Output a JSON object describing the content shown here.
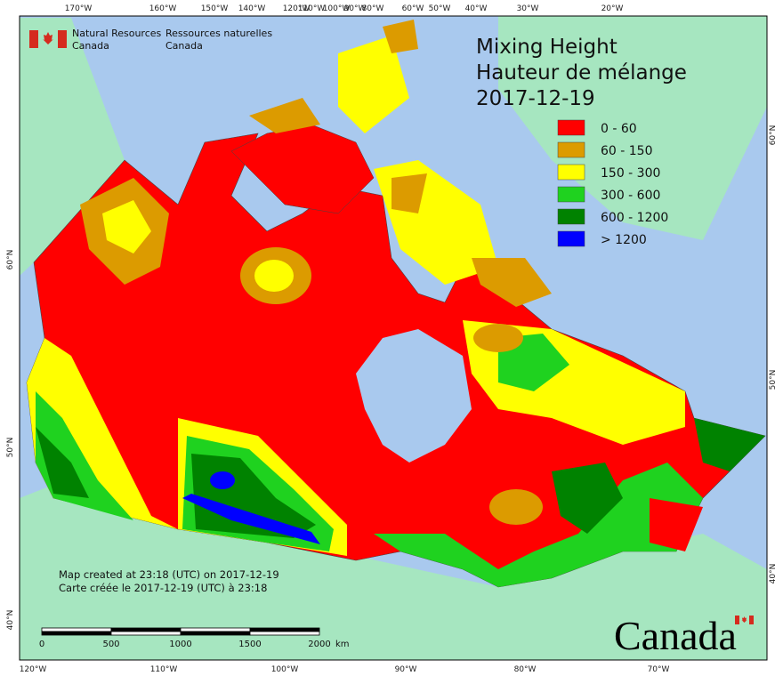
{
  "header": {
    "agency_en": [
      "Natural Resources",
      "Canada"
    ],
    "agency_fr": [
      "Ressources naturelles",
      "Canada"
    ]
  },
  "title": [
    "Mixing Height",
    "Hauteur de mélange",
    "2017-12-19"
  ],
  "legend": [
    {
      "label": "0 - 60",
      "color": "#ff0000"
    },
    {
      "label": "60 - 150",
      "color": "#dc9b00"
    },
    {
      "label": "150 - 300",
      "color": "#ffff00"
    },
    {
      "label": "300 - 600",
      "color": "#1fd21f"
    },
    {
      "label": "600 - 1200",
      "color": "#008200"
    },
    {
      "label": "> 1200",
      "color": "#0000ff"
    }
  ],
  "graticule": {
    "top": [
      "170°W",
      "160°W",
      "150°W",
      "140°W",
      "120°W",
      "110°W",
      "100°W",
      "90°W",
      "80°W",
      "60°W",
      "50°W",
      "40°W",
      "30°W",
      "20°W"
    ],
    "bottom": [
      "120°W",
      "110°W",
      "100°W",
      "90°W",
      "80°W",
      "70°W"
    ],
    "left": [
      "60°N",
      "50°N",
      "40°N"
    ],
    "right": [
      "60°N",
      "50°N",
      "40°N"
    ]
  },
  "footnote": [
    "Map created at 23:18 (UTC) on 2017-12-19",
    "Carte créée le 2017-12-19 (UTC) à 23:18"
  ],
  "scale_bar": {
    "ticks": [
      "0",
      "500",
      "1000",
      "1500",
      "2000"
    ],
    "unit": "km"
  },
  "wordmark": "Canada"
}
